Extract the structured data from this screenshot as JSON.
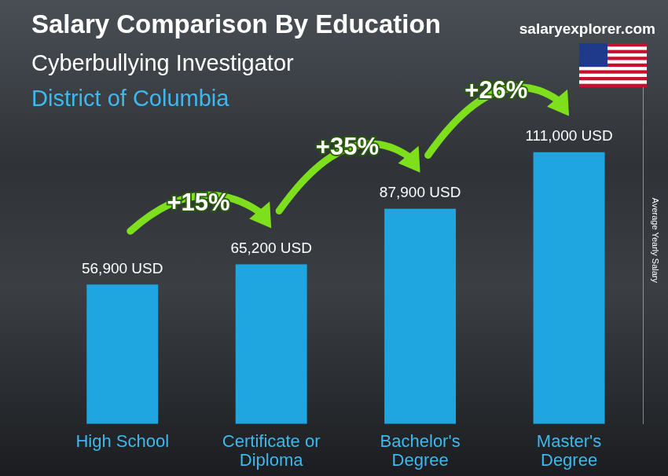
{
  "chart_data": {
    "type": "bar",
    "title": "Salary Comparison By Education",
    "subtitle": "Cyberbullying Investigator",
    "location": "District of Columbia",
    "source": "salaryexplorer.com",
    "y_label": "Average Yearly Salary",
    "categories": [
      "High School",
      "Certificate or Diploma",
      "Bachelor's Degree",
      "Master's Degree"
    ],
    "values": [
      56900,
      65200,
      87900,
      111000
    ],
    "value_labels": [
      "56,900 USD",
      "65,200 USD",
      "87,900 USD",
      "111,000 USD"
    ],
    "data_labels": true,
    "annotations": [
      "+15%",
      "+35%",
      "+26%"
    ],
    "color": "#1fa5e0",
    "ylim": [
      0,
      150000
    ],
    "tick_labels": "x",
    "grid": false
  }
}
